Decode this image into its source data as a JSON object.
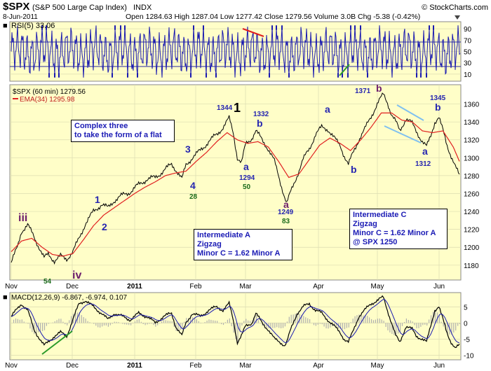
{
  "header": {
    "symbol": "$SPX",
    "name": "(S&P 500 Large Cap Index)",
    "exchange": "INDX",
    "watermark": "© StockCharts.com",
    "date": "8-Jun-2011",
    "quote": "Open 1284.63  High 1287.04  Low 1277.42  Close 1279.56  Volume 3.0B  Chg -5.38 (-0.42%)",
    "dropdown_icon": "triangle-down-icon"
  },
  "chart_data": [
    {
      "type": "line",
      "panel": "RSI",
      "title": "RSI(5) 33.06",
      "yticks": [
        10,
        30,
        50,
        70,
        90
      ],
      "ylim": [
        0,
        100
      ],
      "reference_lines": [
        30,
        70
      ],
      "series": [
        {
          "name": "RSI(5)",
          "last": 33.06
        }
      ]
    },
    {
      "type": "line",
      "panel": "Price",
      "legend": [
        "$SPX (60 min) 1279.56",
        "EMA(34) 1295.98"
      ],
      "ylim": [
        1165,
        1380
      ],
      "yticks": [
        1180,
        1200,
        1220,
        1240,
        1260,
        1280,
        1300,
        1320,
        1340,
        1360
      ],
      "x_months": [
        "Nov",
        "Dec",
        "2011",
        "Feb",
        "Mar",
        "Apr",
        "May",
        "Jun"
      ],
      "series": [
        {
          "name": "$SPX (60 min)",
          "points": [
            [
              0,
              1183
            ],
            [
              3,
              1200
            ],
            [
              5,
              1218
            ],
            [
              8,
              1225
            ],
            [
              11,
              1212
            ],
            [
              14,
              1198
            ],
            [
              16,
              1188
            ],
            [
              18,
              1192
            ],
            [
              21,
              1185
            ],
            [
              24,
              1190
            ],
            [
              27,
              1187
            ],
            [
              30,
              1195
            ],
            [
              33,
              1210
            ],
            [
              36,
              1226
            ],
            [
              40,
              1240
            ],
            [
              44,
              1248
            ],
            [
              47,
              1244
            ],
            [
              50,
              1252
            ],
            [
              54,
              1258
            ],
            [
              58,
              1262
            ],
            [
              62,
              1270
            ],
            [
              66,
              1276
            ],
            [
              70,
              1278
            ],
            [
              74,
              1285
            ],
            [
              78,
              1293
            ],
            [
              80,
              1287
            ],
            [
              83,
              1276
            ],
            [
              85,
              1292
            ],
            [
              88,
              1300
            ],
            [
              92,
              1308
            ],
            [
              96,
              1318
            ],
            [
              100,
              1326
            ],
            [
              103,
              1334
            ],
            [
              106,
              1344
            ],
            [
              108,
              1328
            ],
            [
              110,
              1300
            ],
            [
              112,
              1294
            ],
            [
              114,
              1315
            ],
            [
              117,
              1322
            ],
            [
              119,
              1330
            ],
            [
              122,
              1320
            ],
            [
              125,
              1310
            ],
            [
              128,
              1296
            ],
            [
              131,
              1272
            ],
            [
              133,
              1256
            ],
            [
              134,
              1249
            ],
            [
              136,
              1262
            ],
            [
              139,
              1280
            ],
            [
              142,
              1298
            ],
            [
              145,
              1310
            ],
            [
              148,
              1326
            ],
            [
              151,
              1334
            ],
            [
              154,
              1332
            ],
            [
              157,
              1322
            ],
            [
              160,
              1314
            ],
            [
              162,
              1302
            ],
            [
              164,
              1292
            ],
            [
              166,
              1304
            ],
            [
              169,
              1320
            ],
            [
              172,
              1332
            ],
            [
              175,
              1346
            ],
            [
              178,
              1360
            ],
            [
              181,
              1371
            ],
            [
              183,
              1362
            ],
            [
              185,
              1348
            ],
            [
              187,
              1340
            ],
            [
              189,
              1330
            ],
            [
              192,
              1344
            ],
            [
              195,
              1338
            ],
            [
              197,
              1330
            ],
            [
              200,
              1318
            ],
            [
              202,
              1312
            ],
            [
              204,
              1324
            ],
            [
              206,
              1340
            ],
            [
              208,
              1345
            ],
            [
              210,
              1330
            ],
            [
              212,
              1314
            ],
            [
              214,
              1302
            ],
            [
              216,
              1290
            ],
            [
              218,
              1279.56
            ]
          ]
        },
        {
          "name": "EMA(34)",
          "points": [
            [
              0,
              1195
            ],
            [
              5,
              1207
            ],
            [
              10,
              1210
            ],
            [
              15,
              1200
            ],
            [
              20,
              1192
            ],
            [
              25,
              1190
            ],
            [
              30,
              1193
            ],
            [
              35,
              1208
            ],
            [
              40,
              1224
            ],
            [
              45,
              1236
            ],
            [
              50,
              1244
            ],
            [
              55,
              1252
            ],
            [
              60,
              1260
            ],
            [
              65,
              1267
            ],
            [
              70,
              1273
            ],
            [
              75,
              1280
            ],
            [
              80,
              1283
            ],
            [
              85,
              1285
            ],
            [
              90,
              1296
            ],
            [
              95,
              1306
            ],
            [
              100,
              1318
            ],
            [
              105,
              1328
            ],
            [
              110,
              1320
            ],
            [
              115,
              1316
            ],
            [
              120,
              1318
            ],
            [
              125,
              1312
            ],
            [
              130,
              1296
            ],
            [
              135,
              1278
            ],
            [
              140,
              1282
            ],
            [
              145,
              1298
            ],
            [
              150,
              1314
            ],
            [
              155,
              1322
            ],
            [
              160,
              1316
            ],
            [
              165,
              1308
            ],
            [
              170,
              1320
            ],
            [
              175,
              1334
            ],
            [
              180,
              1350
            ],
            [
              185,
              1350
            ],
            [
              190,
              1342
            ],
            [
              195,
              1340
            ],
            [
              200,
              1330
            ],
            [
              205,
              1328
            ],
            [
              210,
              1330
            ],
            [
              215,
              1312
            ],
            [
              218,
              1295.98
            ]
          ]
        }
      ]
    },
    {
      "type": "line",
      "panel": "MACD",
      "title": "MACD(12,26,9) -6.867, -6.974, 0.107",
      "yticks": [
        -10,
        -5,
        0,
        5
      ],
      "ylim": [
        -11,
        9
      ],
      "x_months": [
        "Nov",
        "Dec",
        "2011",
        "Feb",
        "Mar",
        "Apr",
        "May",
        "Jun"
      ],
      "series": [
        {
          "name": "MACD",
          "points": [
            [
              0,
              2
            ],
            [
              5,
              6
            ],
            [
              8,
              4
            ],
            [
              11,
              -2
            ],
            [
              14,
              -5
            ],
            [
              16,
              -7
            ],
            [
              18,
              -6
            ],
            [
              21,
              -4
            ],
            [
              24,
              -3
            ],
            [
              27,
              -4
            ],
            [
              30,
              1
            ],
            [
              33,
              6
            ],
            [
              36,
              7
            ],
            [
              40,
              5
            ],
            [
              44,
              3
            ],
            [
              47,
              1
            ],
            [
              50,
              3
            ],
            [
              54,
              2
            ],
            [
              58,
              1
            ],
            [
              62,
              3
            ],
            [
              66,
              2
            ],
            [
              70,
              0
            ],
            [
              74,
              2
            ],
            [
              78,
              3
            ],
            [
              80,
              -1
            ],
            [
              83,
              -4
            ],
            [
              85,
              0
            ],
            [
              88,
              3
            ],
            [
              92,
              2
            ],
            [
              96,
              4
            ],
            [
              100,
              5
            ],
            [
              103,
              4
            ],
            [
              106,
              6
            ],
            [
              108,
              1
            ],
            [
              110,
              -6
            ],
            [
              112,
              -4
            ],
            [
              114,
              -1
            ],
            [
              117,
              0
            ],
            [
              119,
              3
            ],
            [
              122,
              0
            ],
            [
              125,
              -2
            ],
            [
              128,
              -5
            ],
            [
              131,
              -6
            ],
            [
              133,
              -7
            ],
            [
              134,
              -6
            ],
            [
              136,
              -2
            ],
            [
              139,
              3
            ],
            [
              142,
              5
            ],
            [
              145,
              6
            ],
            [
              148,
              4
            ],
            [
              151,
              3
            ],
            [
              154,
              1
            ],
            [
              157,
              -1
            ],
            [
              160,
              -3
            ],
            [
              162,
              -5
            ],
            [
              164,
              -6
            ],
            [
              166,
              -3
            ],
            [
              169,
              2
            ],
            [
              172,
              4
            ],
            [
              175,
              6
            ],
            [
              178,
              7
            ],
            [
              181,
              8
            ],
            [
              183,
              4
            ],
            [
              185,
              0
            ],
            [
              187,
              -4
            ],
            [
              189,
              -6
            ],
            [
              192,
              -1
            ],
            [
              195,
              -2
            ],
            [
              197,
              -4
            ],
            [
              200,
              -5
            ],
            [
              202,
              -6
            ],
            [
              204,
              -1
            ],
            [
              206,
              4
            ],
            [
              208,
              5
            ],
            [
              210,
              1
            ],
            [
              212,
              -3
            ],
            [
              214,
              -6
            ],
            [
              216,
              -8
            ],
            [
              218,
              -6.87
            ]
          ]
        },
        {
          "name": "Signal",
          "last": -6.974
        },
        {
          "name": "Histogram",
          "last": 0.107
        }
      ]
    }
  ],
  "annotations": {
    "waves": [
      {
        "label": "iii",
        "style": "roman"
      },
      {
        "label": "iv",
        "style": "roman"
      },
      {
        "label": "1",
        "style": "wave"
      },
      {
        "label": "2",
        "style": "wave"
      },
      {
        "label": "3",
        "style": "wave"
      },
      {
        "label": "4",
        "style": "wave"
      },
      {
        "label": "1",
        "style": "big"
      },
      {
        "label": "1344",
        "style": "price"
      },
      {
        "label": "1332",
        "style": "price"
      },
      {
        "label": "b",
        "style": "wave"
      },
      {
        "label": "a",
        "style": "wave"
      },
      {
        "label": "1294",
        "style": "price"
      },
      {
        "label": "1249",
        "style": "price"
      },
      {
        "label": "a",
        "style": "wave"
      },
      {
        "label": "b",
        "style": "wave"
      },
      {
        "label": "1371",
        "style": "price"
      },
      {
        "label": "b",
        "style": "purple"
      },
      {
        "label": "1345",
        "style": "price"
      },
      {
        "label": "b",
        "style": "wave"
      },
      {
        "label": "a",
        "style": "wave"
      },
      {
        "label": "1312",
        "style": "price"
      },
      {
        "label": "a",
        "style": "purple"
      }
    ],
    "rsi_values": [
      {
        "label": "54"
      },
      {
        "label": "28"
      },
      {
        "label": "50"
      },
      {
        "label": "83"
      }
    ],
    "box_flat": {
      "line1": "Complex three",
      "line2": "to take the form of a flat"
    },
    "box_a": {
      "line1": "Intermediate A",
      "line2": "Zigzag",
      "line3": "Minor C = 1.62 Minor A"
    },
    "box_c": {
      "line1": "Intermediate C",
      "line2": "Zigzag",
      "line3": "Minor C = 1.62 Minor A",
      "line4": "@ SPX 1250"
    }
  },
  "colors": {
    "panel_bg": "#fffec8",
    "price": "#000000",
    "ema": "#e02020",
    "rsi": "#1a1ab0",
    "macd_hist": "#b0b0b0",
    "wave_blue": "#2525b0",
    "wave_green": "#1b6b1b",
    "wave_purple": "#6b1b6b",
    "trend_green": "#2a9a2a",
    "trend_red": "#e02020",
    "channel_blue": "#7fc0f0"
  }
}
